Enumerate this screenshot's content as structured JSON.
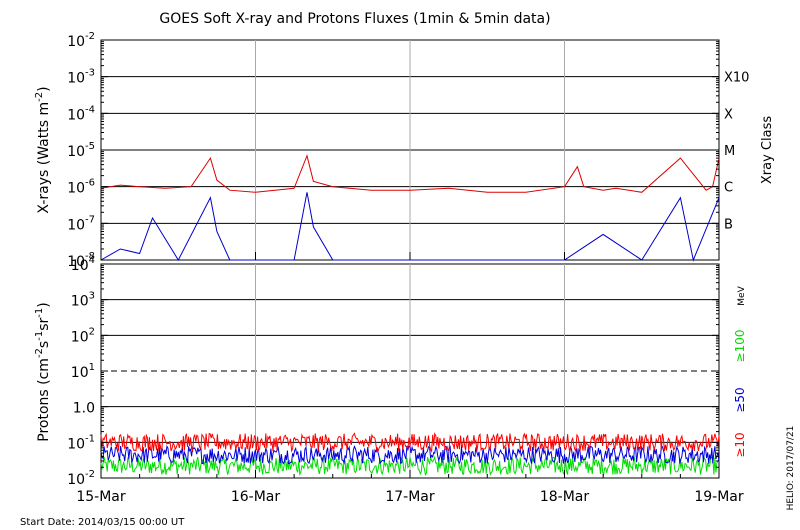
{
  "chart_data": [
    {
      "type": "line",
      "title": "GOES Soft X-ray and Protons Fluxes   (1min & 5min data)",
      "ylabel": "X-rays (Watts m^-2)",
      "ylabel_parts": {
        "main": "X-rays (Watts m",
        "sup": "-2",
        "close": ")"
      },
      "y_scale": "log",
      "ylim": [
        1e-08,
        0.01
      ],
      "ytick_labels": [
        {
          "base": "10",
          "exp": "-8"
        },
        {
          "base": "10",
          "exp": "-7"
        },
        {
          "base": "10",
          "exp": "-6"
        },
        {
          "base": "10",
          "exp": "-5"
        },
        {
          "base": "10",
          "exp": "-4"
        },
        {
          "base": "10",
          "exp": "-3"
        },
        {
          "base": "10",
          "exp": "-2"
        }
      ],
      "right_axis_label": "Xray Class",
      "class_labels": [
        {
          "label": "B",
          "value": 1e-07
        },
        {
          "label": "C",
          "value": 1e-06
        },
        {
          "label": "M",
          "value": 1e-05
        },
        {
          "label": "X",
          "value": 0.0001
        },
        {
          "label": "X10",
          "value": 0.001
        }
      ],
      "grid": "horizontal lines at B, C, M, X, X10 levels",
      "series": [
        {
          "color": "#dd0000",
          "x": [
            "2014-03-15 00:00",
            "2014-03-15 03:00",
            "2014-03-15 06:00",
            "2014-03-15 10:00",
            "2014-03-15 14:00",
            "2014-03-15 17:00",
            "2014-03-15 18:00",
            "2014-03-15 20:00",
            "2014-03-16 00:00",
            "2014-03-16 06:00",
            "2014-03-16 08:00",
            "2014-03-16 09:00",
            "2014-03-16 12:00",
            "2014-03-16 18:00",
            "2014-03-17 00:00",
            "2014-03-17 06:00",
            "2014-03-17 12:00",
            "2014-03-17 18:00",
            "2014-03-18 00:00",
            "2014-03-18 02:00",
            "2014-03-18 03:00",
            "2014-03-18 06:00",
            "2014-03-18 08:00",
            "2014-03-18 12:00",
            "2014-03-18 18:00",
            "2014-03-18 22:00",
            "2014-03-18 23:00",
            "2014-03-19 00:00"
          ],
          "values": [
            9e-07,
            1.1e-06,
            1e-06,
            9e-07,
            1e-06,
            6e-06,
            1.5e-06,
            8e-07,
            7e-07,
            9e-07,
            7e-06,
            1.4e-06,
            1e-06,
            8e-07,
            8e-07,
            9e-07,
            7e-07,
            7e-07,
            1e-06,
            3.5e-06,
            1e-06,
            8e-07,
            9e-07,
            7e-07,
            6e-06,
            8e-07,
            1e-06,
            6e-06
          ]
        },
        {
          "color": "#0000cc",
          "x": [
            "2014-03-15 00:00",
            "2014-03-15 03:00",
            "2014-03-15 06:00",
            "2014-03-15 08:00",
            "2014-03-15 12:00",
            "2014-03-15 17:00",
            "2014-03-15 18:00",
            "2014-03-15 20:00",
            "2014-03-16 00:00",
            "2014-03-16 06:00",
            "2014-03-16 08:00",
            "2014-03-16 09:00",
            "2014-03-16 12:00",
            "2014-03-17 00:00",
            "2014-03-17 12:00",
            "2014-03-18 00:00",
            "2014-03-18 06:00",
            "2014-03-18 12:00",
            "2014-03-18 18:00",
            "2014-03-18 20:00",
            "2014-03-19 00:00"
          ],
          "values": [
            1e-08,
            2e-08,
            1.5e-08,
            1.4e-07,
            1e-08,
            5e-07,
            6e-08,
            1e-08,
            1e-08,
            1e-08,
            7e-07,
            8e-08,
            1e-08,
            1e-08,
            1e-08,
            1e-08,
            5e-08,
            1e-08,
            5e-07,
            1e-08,
            5e-07
          ]
        }
      ]
    },
    {
      "type": "line",
      "ylabel": "Protons (cm^-2 s^-1 sr^-1)",
      "ylabel_parts": {
        "main": "Protons (cm",
        "sup1": "-2",
        "mid1": "s",
        "sup2": "-1",
        "mid2": "sr",
        "sup3": "-1",
        "close": ")"
      },
      "y_scale": "log",
      "ylim": [
        0.01,
        10000
      ],
      "ytick_labels": [
        {
          "base": "10",
          "exp": "-2"
        },
        {
          "base": "10",
          "exp": "-1"
        },
        {
          "base": "1.0",
          "exp": ""
        },
        {
          "base": "10",
          "exp": "1"
        },
        {
          "base": "10",
          "exp": "2"
        },
        {
          "base": "10",
          "exp": "3"
        },
        {
          "base": "10",
          "exp": "4"
        }
      ],
      "threshold_line": {
        "value": 10,
        "style": "dashed"
      },
      "energy_unit": "MeV",
      "series": [
        {
          "name": "≥10",
          "color": "#ff0000",
          "baseline": 0.1
        },
        {
          "name": "≥50",
          "color": "#0000dd",
          "baseline": 0.045
        },
        {
          "name": "≥100",
          "color": "#00dd00",
          "baseline": 0.022
        }
      ]
    }
  ],
  "x_axis": {
    "range": [
      "2014-03-15 00:00",
      "2014-03-19 00:00"
    ],
    "tick_labels": [
      "15-Mar",
      "16-Mar",
      "17-Mar",
      "18-Mar",
      "19-Mar"
    ],
    "vertical_grid": true
  },
  "footer": {
    "start_date": "Start Date: 2014/03/15 00:00 UT",
    "credit": "HELIO: 2017/07/21"
  }
}
